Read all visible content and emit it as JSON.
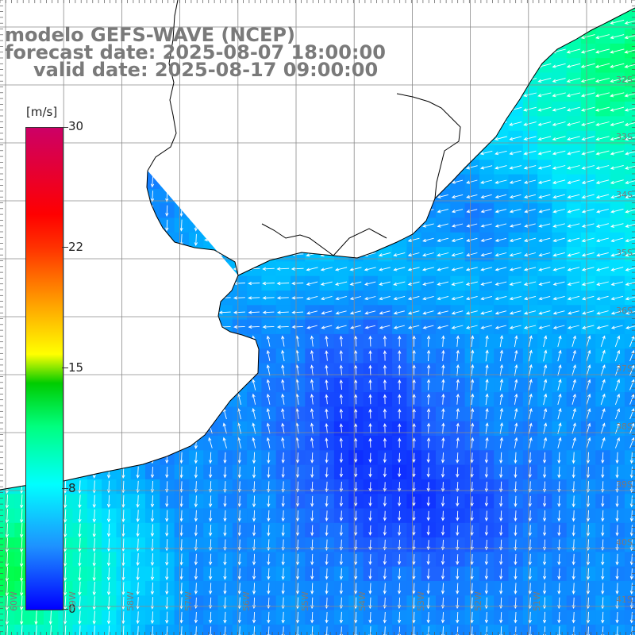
{
  "title": {
    "line1": "modelo GEFS-WAVE (NCEP)",
    "line2": "forecast date: 2025-08-07 18:00:00",
    "line3": "valid date: 2025-08-17 09:00:00"
  },
  "colorbar": {
    "unit": "[m/s]",
    "ticks": [
      {
        "label": "30",
        "value": 30
      },
      {
        "label": "22",
        "value": 22
      },
      {
        "label": "15",
        "value": 15
      },
      {
        "label": "8",
        "value": 8
      },
      {
        "label": "0",
        "value": 0
      }
    ],
    "range": [
      0,
      30
    ],
    "colors": [
      "#0000ff",
      "#1e90ff",
      "#00ffff",
      "#00ff7f",
      "#00cc00",
      "#ffff00",
      "#ffa500",
      "#ff0000",
      "#cc0066"
    ]
  },
  "map": {
    "latitude_labels": [
      "32S",
      "33S",
      "34S",
      "35S",
      "36S",
      "37S",
      "38S",
      "39S",
      "40S",
      "41S"
    ],
    "longitude_labels": [
      "60W",
      "59W",
      "58W",
      "57W",
      "56W",
      "55W",
      "54W",
      "53W",
      "52W",
      "51W"
    ],
    "colors": {
      "land": "#ffffff",
      "coastline": "#000000",
      "grid": "#8a8a8a",
      "arrows": "#ffffff",
      "title": "#7a7a7a"
    }
  }
}
